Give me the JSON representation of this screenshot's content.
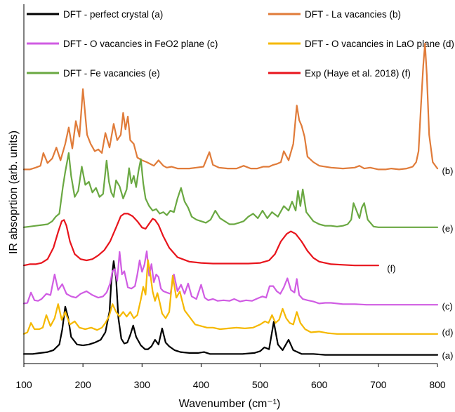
{
  "chart_data": {
    "type": "line",
    "xlabel": "Wavenumber (cm⁻¹)",
    "ylabel": "IR absoprtion (arb. units)",
    "xlim": [
      100,
      800
    ],
    "xticks": [
      100,
      200,
      300,
      400,
      500,
      600,
      700,
      800
    ],
    "x_tick_labels": [
      "100",
      "200",
      "300",
      "400",
      "500",
      "600",
      "700",
      "800"
    ],
    "y_ticks": "none",
    "grid": false,
    "legend_placement": "top",
    "legend": [
      {
        "text": "DFT - perfect crystal",
        "label": "(a)",
        "color": "#000000"
      },
      {
        "text": "DFT - La vacancies",
        "label": "(b)",
        "color": "#e07b39"
      },
      {
        "text": "DFT - O vacancies in FeO2 plane",
        "label": "(c)",
        "color": "#d05ce3"
      },
      {
        "text": "DFT - O vacancies in LaO plane",
        "label": "(d)",
        "color": "#f5b800"
      },
      {
        "text": "DFT - Fe vacancies",
        "label": "(e)",
        "color": "#6aa842"
      },
      {
        "text": "Exp (Haye et al. 2018)",
        "label": "(f)",
        "color": "#e8141c"
      }
    ],
    "series": [
      {
        "name": "DFT - perfect crystal",
        "label": "(a)",
        "color": "#000000",
        "label_x": 803,
        "peaks": [
          [
            170,
            0.52
          ],
          [
            180,
            0.18
          ],
          [
            245,
            0.45
          ],
          [
            252,
            1.0
          ],
          [
            265,
            0.12
          ],
          [
            285,
            0.32
          ],
          [
            298,
            0.08
          ],
          [
            322,
            0.17
          ],
          [
            334,
            0.29
          ],
          [
            346,
            0.08
          ],
          [
            405,
            0.03
          ],
          [
            507,
            0.09
          ],
          [
            523,
            0.36
          ],
          [
            548,
            0.18
          ]
        ],
        "x": [
          100,
          115,
          128,
          140,
          150,
          160,
          165,
          170,
          175,
          180,
          190,
          200,
          210,
          220,
          230,
          238,
          245,
          248,
          252,
          256,
          260,
          265,
          270,
          275,
          280,
          285,
          290,
          298,
          305,
          310,
          316,
          322,
          328,
          334,
          340,
          346,
          355,
          365,
          380,
          395,
          405,
          415,
          430,
          450,
          470,
          490,
          500,
          507,
          515,
          523,
          530,
          538,
          548,
          556,
          570,
          590,
          610,
          630,
          650,
          700,
          750,
          800
        ],
        "y": [
          0.02,
          0.02,
          0.03,
          0.04,
          0.06,
          0.12,
          0.28,
          0.52,
          0.4,
          0.2,
          0.12,
          0.11,
          0.12,
          0.14,
          0.17,
          0.25,
          0.47,
          0.78,
          1.0,
          0.82,
          0.4,
          0.18,
          0.13,
          0.14,
          0.22,
          0.32,
          0.2,
          0.11,
          0.07,
          0.07,
          0.1,
          0.17,
          0.12,
          0.29,
          0.14,
          0.1,
          0.06,
          0.04,
          0.03,
          0.03,
          0.04,
          0.02,
          0.02,
          0.02,
          0.02,
          0.03,
          0.05,
          0.09,
          0.07,
          0.36,
          0.12,
          0.06,
          0.17,
          0.06,
          0.02,
          0.02,
          0.01,
          0.01,
          0.01,
          0.01,
          0.01,
          0.01
        ]
      },
      {
        "name": "DFT - La vacancies",
        "label": "(b)",
        "color": "#e07b39",
        "label_x": 803,
        "x": [
          100,
          110,
          120,
          128,
          133,
          140,
          148,
          155,
          162,
          170,
          176,
          182,
          188,
          194,
          200,
          207,
          213,
          220,
          226,
          232,
          238,
          245,
          252,
          258,
          264,
          268,
          272,
          276,
          280,
          286,
          292,
          300,
          308,
          314,
          320,
          328,
          336,
          342,
          350,
          360,
          370,
          380,
          392,
          404,
          414,
          420,
          430,
          445,
          460,
          472,
          484,
          495,
          505,
          515,
          522,
          528,
          535,
          540,
          548,
          556,
          562,
          566,
          570,
          575,
          580,
          590,
          600,
          620,
          640,
          660,
          668,
          676,
          686,
          700,
          712,
          722,
          735,
          748,
          758,
          764,
          768,
          772,
          776,
          779,
          782,
          786,
          792,
          800
        ],
        "y": [
          0.02,
          0.02,
          0.04,
          0.06,
          0.2,
          0.09,
          0.14,
          0.26,
          0.12,
          0.3,
          0.48,
          0.25,
          0.55,
          0.38,
          0.9,
          0.4,
          0.3,
          0.22,
          0.24,
          0.2,
          0.42,
          0.26,
          0.52,
          0.34,
          0.4,
          0.64,
          0.46,
          0.6,
          0.34,
          0.3,
          0.15,
          0.12,
          0.1,
          0.08,
          0.06,
          0.12,
          0.06,
          0.04,
          0.05,
          0.03,
          0.03,
          0.03,
          0.04,
          0.05,
          0.21,
          0.07,
          0.04,
          0.03,
          0.03,
          0.06,
          0.03,
          0.03,
          0.05,
          0.05,
          0.07,
          0.08,
          0.1,
          0.22,
          0.12,
          0.3,
          0.72,
          0.56,
          0.5,
          0.38,
          0.16,
          0.1,
          0.06,
          0.04,
          0.03,
          0.04,
          0.06,
          0.03,
          0.04,
          0.02,
          0.02,
          0.03,
          0.02,
          0.03,
          0.05,
          0.1,
          0.22,
          0.7,
          1.16,
          1.4,
          1.05,
          0.4,
          0.1,
          0.03
        ]
      },
      {
        "name": "DFT - O vacancies in FeO2 plane",
        "label": "(c)",
        "color": "#d05ce3",
        "label_x": 803,
        "x": [
          100,
          106,
          112,
          118,
          124,
          130,
          138,
          145,
          152,
          158,
          165,
          172,
          180,
          188,
          196,
          206,
          216,
          226,
          234,
          240,
          246,
          250,
          254,
          258,
          262,
          266,
          270,
          276,
          282,
          288,
          292,
          296,
          300,
          304,
          308,
          312,
          316,
          320,
          324,
          328,
          332,
          336,
          342,
          348,
          354,
          360,
          366,
          372,
          378,
          384,
          392,
          400,
          406,
          412,
          420,
          428,
          438,
          448,
          456,
          466,
          476,
          486,
          496,
          504,
          510,
          516,
          522,
          528,
          534,
          540,
          546,
          552,
          558,
          562,
          566,
          572,
          580,
          590,
          600,
          610,
          620,
          640,
          660,
          680,
          700,
          750,
          800
        ],
        "y": [
          0.05,
          0.06,
          0.22,
          0.1,
          0.09,
          0.12,
          0.2,
          0.18,
          0.5,
          0.26,
          0.35,
          0.2,
          0.16,
          0.14,
          0.2,
          0.24,
          0.18,
          0.14,
          0.16,
          0.22,
          0.36,
          0.55,
          0.58,
          0.4,
          0.85,
          0.5,
          0.55,
          0.3,
          0.28,
          0.32,
          0.5,
          0.72,
          0.54,
          0.65,
          0.86,
          0.48,
          0.66,
          0.38,
          0.5,
          0.46,
          0.28,
          0.24,
          0.22,
          0.2,
          0.5,
          0.24,
          0.34,
          0.2,
          0.36,
          0.16,
          0.12,
          0.34,
          0.14,
          0.1,
          0.12,
          0.09,
          0.1,
          0.09,
          0.12,
          0.08,
          0.1,
          0.09,
          0.13,
          0.16,
          0.14,
          0.32,
          0.32,
          0.24,
          0.2,
          0.3,
          0.44,
          0.26,
          0.22,
          0.43,
          0.18,
          0.12,
          0.1,
          0.08,
          0.05,
          0.06,
          0.06,
          0.04,
          0.04,
          0.03,
          0.03,
          0.03,
          0.03
        ]
      },
      {
        "name": "DFT - O vacancies in LaO plane",
        "label": "(d)",
        "color": "#f5b800",
        "label_x": 803,
        "x": [
          100,
          106,
          112,
          118,
          126,
          132,
          138,
          145,
          152,
          158,
          164,
          170,
          178,
          186,
          194,
          204,
          214,
          224,
          232,
          238,
          244,
          250,
          256,
          262,
          268,
          274,
          280,
          286,
          292,
          298,
          302,
          306,
          310,
          314,
          318,
          322,
          326,
          330,
          334,
          340,
          346,
          352,
          358,
          364,
          372,
          380,
          390,
          400,
          410,
          420,
          432,
          446,
          460,
          474,
          488,
          500,
          508,
          514,
          520,
          526,
          532,
          538,
          544,
          550,
          556,
          562,
          568,
          576,
          586,
          600,
          614,
          630,
          650,
          680,
          700,
          750,
          800
        ],
        "y": [
          0.02,
          0.04,
          0.16,
          0.08,
          0.08,
          0.1,
          0.26,
          0.12,
          0.22,
          0.4,
          0.2,
          0.3,
          0.14,
          0.18,
          0.1,
          0.08,
          0.1,
          0.07,
          0.1,
          0.16,
          0.24,
          0.4,
          0.3,
          0.24,
          0.3,
          0.24,
          0.3,
          0.22,
          0.26,
          0.46,
          0.62,
          0.52,
          0.96,
          0.78,
          0.56,
          0.44,
          0.54,
          0.42,
          0.28,
          0.22,
          0.3,
          0.76,
          0.48,
          0.56,
          0.32,
          0.24,
          0.14,
          0.12,
          0.1,
          0.1,
          0.08,
          0.09,
          0.1,
          0.09,
          0.1,
          0.14,
          0.18,
          0.16,
          0.26,
          0.16,
          0.2,
          0.34,
          0.22,
          0.16,
          0.14,
          0.3,
          0.16,
          0.08,
          0.04,
          0.05,
          0.03,
          0.02,
          0.02,
          0.02,
          0.02,
          0.02,
          0.02
        ]
      },
      {
        "name": "DFT - Fe vacancies",
        "label": "(e)",
        "color": "#6aa842",
        "label_x": 803,
        "x": [
          100,
          110,
          120,
          130,
          140,
          148,
          154,
          160,
          166,
          170,
          176,
          180,
          186,
          192,
          198,
          204,
          210,
          216,
          222,
          228,
          234,
          240,
          244,
          248,
          252,
          256,
          262,
          268,
          274,
          278,
          282,
          286,
          290,
          294,
          298,
          302,
          306,
          312,
          318,
          324,
          330,
          336,
          342,
          348,
          354,
          360,
          366,
          372,
          378,
          384,
          392,
          400,
          408,
          416,
          424,
          432,
          440,
          448,
          456,
          464,
          472,
          480,
          488,
          496,
          504,
          512,
          520,
          530,
          540,
          548,
          554,
          560,
          564,
          568,
          572,
          578,
          590,
          600,
          610,
          620,
          630,
          640,
          648,
          654,
          658,
          662,
          668,
          672,
          676,
          682,
          692,
          700,
          720,
          740,
          760,
          780,
          800
        ],
        "y": [
          0.02,
          0.03,
          0.04,
          0.05,
          0.06,
          0.1,
          0.16,
          0.2,
          0.55,
          0.75,
          1.0,
          0.7,
          0.42,
          0.5,
          0.82,
          0.58,
          0.62,
          0.48,
          0.54,
          0.42,
          0.46,
          0.9,
          0.62,
          0.48,
          0.42,
          0.64,
          0.56,
          0.4,
          0.52,
          0.8,
          0.6,
          0.7,
          0.55,
          0.76,
          0.92,
          0.6,
          0.4,
          0.3,
          0.24,
          0.26,
          0.2,
          0.22,
          0.18,
          0.24,
          0.22,
          0.4,
          0.54,
          0.36,
          0.28,
          0.16,
          0.12,
          0.1,
          0.08,
          0.12,
          0.24,
          0.14,
          0.1,
          0.06,
          0.06,
          0.08,
          0.1,
          0.16,
          0.2,
          0.14,
          0.24,
          0.14,
          0.22,
          0.16,
          0.3,
          0.24,
          0.36,
          0.24,
          0.5,
          0.3,
          0.52,
          0.22,
          0.1,
          0.06,
          0.04,
          0.04,
          0.03,
          0.04,
          0.06,
          0.12,
          0.34,
          0.26,
          0.14,
          0.28,
          0.34,
          0.12,
          0.03,
          0.02,
          0.02,
          0.02,
          0.02,
          0.02,
          0.02
        ]
      },
      {
        "name": "Exp (Haye et al. 2018)",
        "label": "(f)",
        "color": "#e8141c",
        "label_x": 710,
        "x": [
          100,
          110,
          120,
          130,
          140,
          150,
          158,
          164,
          168,
          172,
          178,
          186,
          196,
          206,
          216,
          226,
          236,
          246,
          256,
          264,
          270,
          276,
          284,
          292,
          300,
          306,
          312,
          318,
          322,
          328,
          336,
          346,
          360,
          380,
          400,
          420,
          440,
          460,
          480,
          500,
          515,
          525,
          535,
          545,
          552,
          560,
          570,
          580,
          590,
          600,
          620,
          640,
          660,
          680,
          700
        ],
        "y": [
          0.02,
          0.04,
          0.04,
          0.06,
          0.12,
          0.3,
          0.55,
          0.72,
          0.74,
          0.65,
          0.4,
          0.2,
          0.12,
          0.1,
          0.12,
          0.18,
          0.26,
          0.4,
          0.62,
          0.8,
          0.84,
          0.84,
          0.8,
          0.72,
          0.62,
          0.6,
          0.68,
          0.76,
          0.74,
          0.66,
          0.48,
          0.3,
          0.15,
          0.08,
          0.06,
          0.05,
          0.05,
          0.05,
          0.05,
          0.06,
          0.1,
          0.2,
          0.4,
          0.52,
          0.56,
          0.52,
          0.4,
          0.25,
          0.14,
          0.08,
          0.04,
          0.03,
          0.02,
          0.02,
          0.02
        ]
      }
    ]
  }
}
